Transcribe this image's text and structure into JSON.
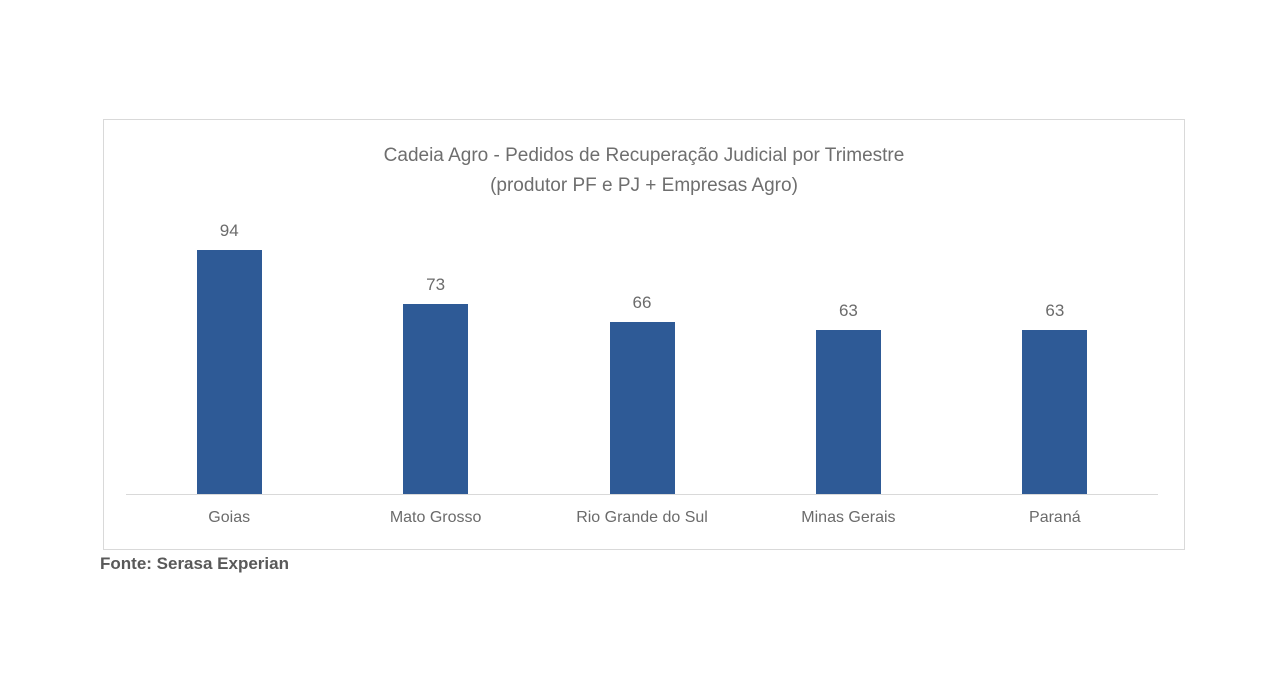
{
  "chart_data": {
    "type": "bar",
    "title": "Cadeia Agro - Pedidos de Recuperação Judicial por Trimestre",
    "subtitle": "(produtor PF e PJ + Empresas Agro)",
    "categories": [
      "Goias",
      "Mato Grosso",
      "Rio Grande do Sul",
      "Minas Gerais",
      "Paraná"
    ],
    "values": [
      94,
      73,
      66,
      63,
      63
    ],
    "xlabel": "",
    "ylabel": "",
    "ylim": [
      0,
      100
    ],
    "grid": false,
    "legend": false,
    "data_labels": true,
    "bar_color": "#2e5a96",
    "axis_line_color": "#d9d9d9",
    "text_color": "#6b6b6b"
  },
  "footer": {
    "source": "Fonte: Serasa Experian"
  }
}
